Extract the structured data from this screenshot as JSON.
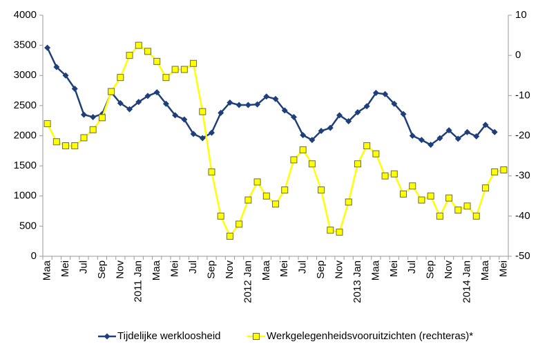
{
  "chart_data": {
    "type": "line",
    "categories": [
      "Maa",
      null,
      "Mei",
      null,
      "Jul",
      null,
      "Sep",
      null,
      "Nov",
      null,
      "2011 Jan",
      null,
      "Maa",
      null,
      "Mei",
      null,
      "Jul",
      null,
      "Sep",
      null,
      "Nov",
      null,
      "2012 Jan",
      null,
      "Maa",
      null,
      "Mei",
      null,
      "Jul",
      null,
      "Sep",
      null,
      "Nov",
      null,
      "2013 Jan",
      null,
      "Maa",
      null,
      "Mei",
      null,
      "Jul",
      null,
      "Sep",
      null,
      "Nov",
      null,
      "2014 Jan",
      null,
      "Maa",
      null,
      "Mei"
    ],
    "series": [
      {
        "name": "Tijdelijke werkloosheid",
        "color": "#1f3f7a",
        "marker": "diamond",
        "values": [
          3460,
          3140,
          3000,
          2780,
          2350,
          2310,
          2360,
          2720,
          2540,
          2440,
          2560,
          2660,
          2720,
          2530,
          2340,
          2270,
          2030,
          1960,
          2050,
          2380,
          2550,
          2510,
          2510,
          2520,
          2650,
          2610,
          2420,
          2310,
          2010,
          1930,
          2080,
          2130,
          2340,
          2240,
          2390,
          2490,
          2710,
          2690,
          2530,
          2360,
          2000,
          1930,
          1850,
          1960,
          2090,
          1950,
          2060,
          1990,
          2180,
          2060,
          null
        ]
      },
      {
        "name": "Werkgelegenheidsvooruitzichten (rechteras)*",
        "color": "#ffff00",
        "marker": "square",
        "axis": "y2",
        "values": [
          -17,
          -21.5,
          -22.5,
          -22.5,
          -20.5,
          -18.5,
          -15.5,
          -9,
          -5.5,
          0,
          2.5,
          1,
          -1.5,
          -5.5,
          -3.5,
          -3.5,
          -2,
          -14,
          -29,
          -40,
          -45,
          -42,
          -36,
          -31.5,
          -35,
          -37,
          -33.5,
          -26,
          -23.5,
          -27,
          -33.5,
          -43.5,
          -44,
          -36.5,
          -27,
          -22.5,
          -24.5,
          -30,
          -29.5,
          -34.5,
          -32.5,
          -36,
          -35,
          -40,
          -35.5,
          -38.5,
          -37.5,
          -40,
          -33,
          -29,
          -28.5
        ]
      }
    ],
    "ylim": [
      0,
      4000
    ],
    "yticks": [
      0,
      500,
      1000,
      1500,
      2000,
      2500,
      3000,
      3500,
      4000
    ],
    "y2lim": [
      -50,
      10
    ],
    "y2ticks": [
      -50,
      -40,
      -30,
      -20,
      -10,
      0,
      10
    ],
    "grid": false,
    "legend": "bottom"
  }
}
